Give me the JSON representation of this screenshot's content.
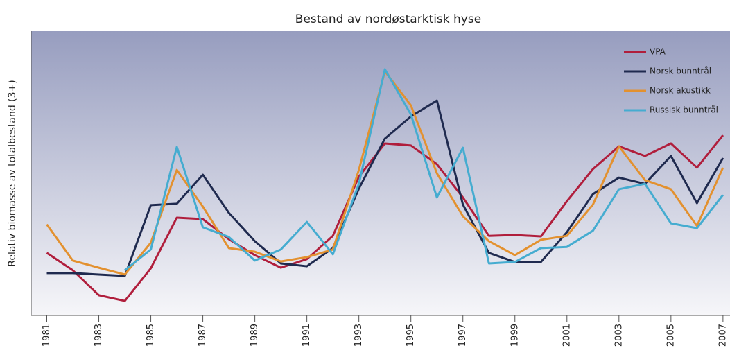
{
  "chart_data": {
    "type": "line",
    "title": "Bestand av nordøstarktisk hyse",
    "y_label": "Relativ biomasse av totalbestand (3+)",
    "x": [
      1981,
      1982,
      1983,
      1984,
      1985,
      1986,
      1987,
      1988,
      1989,
      1990,
      1991,
      1992,
      1993,
      1994,
      1995,
      1996,
      1997,
      1998,
      1999,
      2000,
      2001,
      2002,
      2003,
      2004,
      2005,
      2006,
      2007
    ],
    "xlim": [
      1980.4,
      2007.27
    ],
    "xticks": [
      1981,
      1983,
      1985,
      1987,
      1989,
      1991,
      1993,
      1995,
      1997,
      1999,
      2001,
      2003,
      2005,
      2007
    ],
    "ylim": [
      0,
      100
    ],
    "legend": "upper right",
    "series": [
      {
        "name": "VPA",
        "color": "#b01e3c",
        "values": [
          22,
          15.9,
          7.1,
          5.1,
          16.6,
          34.4,
          33.9,
          26.8,
          21.2,
          16.8,
          19.8,
          28,
          48.8,
          60.5,
          59.8,
          53.2,
          41.5,
          28,
          28.3,
          27.8,
          40.2,
          51.5,
          59.5,
          56.1,
          60.5,
          52,
          63.4
        ]
      },
      {
        "name": "Norsk bunntrål",
        "color": "#1f2a4f",
        "values": [
          14.9,
          14.9,
          14.4,
          13.9,
          38.8,
          39.3,
          49.5,
          36.1,
          26.1,
          18.3,
          17.3,
          23.7,
          44.6,
          62.2,
          70,
          75.6,
          39,
          22,
          18.8,
          18.8,
          29.3,
          42.7,
          48.5,
          46.3,
          56.1,
          39.5,
          55.4
        ]
      },
      {
        "name": "Norsk akustikk",
        "color": "#e3912f",
        "values": [
          32,
          19.3,
          16.8,
          14.4,
          25.6,
          51.2,
          38.3,
          23.7,
          22.4,
          19,
          20.5,
          23.2,
          51.2,
          85.9,
          73.9,
          50,
          34.9,
          26.1,
          21.2,
          26.6,
          28,
          39,
          59.5,
          47.6,
          44.4,
          31.5,
          52
        ]
      },
      {
        "name": "Russisk bunntrål",
        "color": "#45acd0",
        "values": [
          null,
          null,
          null,
          15.9,
          23.2,
          59.3,
          31,
          27.6,
          19.3,
          23.2,
          32.9,
          21.5,
          46.3,
          86.6,
          70.7,
          41.5,
          59,
          18.3,
          18.8,
          23.7,
          24.1,
          29.8,
          44.4,
          46.3,
          32.4,
          30.7,
          42.4
        ]
      }
    ]
  }
}
